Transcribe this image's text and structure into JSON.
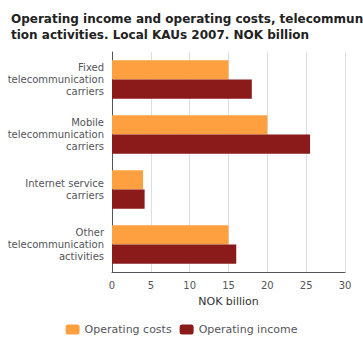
{
  "chart_data": {
    "type": "bar",
    "orientation": "horizontal",
    "title": "Operating income and operating costs, telecommunica-\ntion activities. Local KAUs 2007. NOK billion",
    "categories": [
      "Fixed\ntelecommunication\ncarriers",
      "Mobile\ntelecommunication\ncarriers",
      "Internet service\ncarriers",
      "Other\ntelecommunication\nactivities"
    ],
    "series": [
      {
        "name": "Operating costs",
        "color": "#FFA040",
        "values": [
          15.0,
          20.0,
          4.0,
          15.0
        ]
      },
      {
        "name": "Operating income",
        "color": "#8B1A1A",
        "values": [
          18.0,
          25.5,
          4.2,
          16.0
        ]
      }
    ],
    "xlabel": "NOK billion",
    "xlim": [
      0,
      30
    ],
    "xticks": [
      0,
      5,
      10,
      15,
      20,
      25,
      30
    ],
    "grid": true,
    "legend": "bottom"
  }
}
